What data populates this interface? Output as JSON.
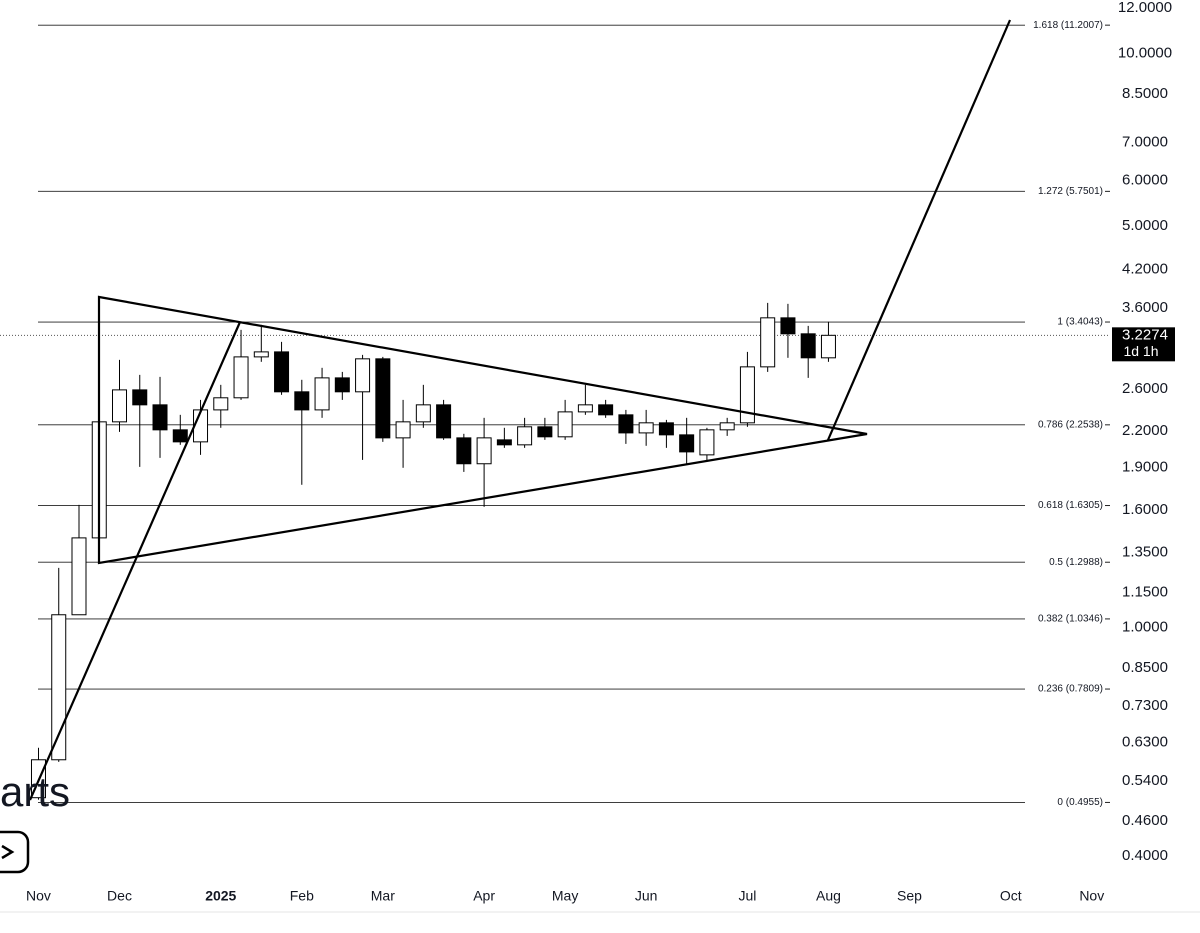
{
  "chart_data": {
    "type": "candlestick",
    "yscale": "log",
    "xlim": [
      -1.9,
      52.9
    ],
    "ylim": [
      0.363,
      12.39
    ],
    "xticks": [
      {
        "value": 0,
        "label": "Nov"
      },
      {
        "value": 4,
        "label": "Dec"
      },
      {
        "value": 9,
        "label": "2025"
      },
      {
        "value": 13,
        "label": "Feb"
      },
      {
        "value": 17,
        "label": "Mar"
      },
      {
        "value": 22,
        "label": "Apr"
      },
      {
        "value": 26,
        "label": "May"
      },
      {
        "value": 30,
        "label": "Jun"
      },
      {
        "value": 35,
        "label": "Jul"
      },
      {
        "value": 39,
        "label": "Aug"
      },
      {
        "value": 43,
        "label": "Sep"
      },
      {
        "value": 48,
        "label": "Oct"
      },
      {
        "value": 52,
        "label": "Nov"
      }
    ],
    "yticks": [
      {
        "value": 12,
        "label": "12.0000"
      },
      {
        "value": 10,
        "label": "10.0000"
      },
      {
        "value": 8.5,
        "label": "8.5000"
      },
      {
        "value": 7,
        "label": "7.0000"
      },
      {
        "value": 6,
        "label": "6.0000"
      },
      {
        "value": 5,
        "label": "5.0000"
      },
      {
        "value": 4.2,
        "label": "4.2000"
      },
      {
        "value": 3.6,
        "label": "3.6000"
      },
      {
        "value": 2.6,
        "label": "2.6000"
      },
      {
        "value": 2.2,
        "label": "2.2000"
      },
      {
        "value": 1.9,
        "label": "1.9000"
      },
      {
        "value": 1.6,
        "label": "1.6000"
      },
      {
        "value": 1.35,
        "label": "1.3500"
      },
      {
        "value": 1.15,
        "label": "1.1500"
      },
      {
        "value": 1,
        "label": "1.0000"
      },
      {
        "value": 0.85,
        "label": "0.8500"
      },
      {
        "value": 0.73,
        "label": "0.7300"
      },
      {
        "value": 0.63,
        "label": "0.6300"
      },
      {
        "value": 0.54,
        "label": "0.5400"
      },
      {
        "value": 0.46,
        "label": "0.4600"
      },
      {
        "value": 0.4,
        "label": "0.4000"
      }
    ],
    "candles": {
      "open": [
        0.505,
        0.588,
        1.052,
        1.432,
        2.281,
        2.593,
        2.442,
        2.209,
        2.105,
        2.393,
        2.512,
        2.96,
        3.02,
        2.573,
        2.393,
        2.721,
        2.573,
        2.937,
        2.139,
        2.281,
        2.442,
        2.139,
        1.928,
        2.122,
        2.08,
        2.236,
        2.148,
        2.374,
        2.442,
        2.346,
        2.182,
        2.272,
        2.165,
        1.998,
        2.209,
        2.272,
        2.844,
        3.462,
        3.247,
        2.949
      ],
      "high": [
        0.617,
        1.27,
        1.635,
        2.299,
        2.925,
        2.754,
        2.732,
        2.346,
        2.491,
        2.646,
        3.299,
        3.366,
        3.144,
        2.7,
        2.833,
        2.787,
        2.984,
        2.96,
        2.491,
        2.646,
        2.491,
        2.174,
        2.318,
        2.227,
        2.318,
        2.318,
        2.491,
        2.646,
        2.491,
        2.393,
        2.393,
        2.299,
        2.318,
        2.227,
        2.318,
        3.02,
        3.676,
        3.662,
        3.352,
        3.407
      ],
      "low": [
        0.501,
        0.583,
        1.052,
        1.421,
        2.191,
        1.904,
        1.974,
        2.08,
        1.998,
        2.227,
        2.491,
        2.902,
        2.542,
        1.772,
        2.318,
        2.491,
        1.958,
        2.105,
        1.897,
        2.227,
        2.122,
        1.866,
        1.622,
        2.055,
        2.055,
        2.122,
        2.122,
        2.346,
        2.318,
        2.088,
        2.072,
        2.055,
        1.92,
        1.943,
        2.156,
        2.236,
        2.787,
        2.949,
        2.721,
        2.902
      ],
      "close": [
        0.588,
        1.052,
        1.432,
        2.281,
        2.593,
        2.442,
        2.209,
        2.105,
        2.393,
        2.512,
        2.96,
        3.02,
        2.573,
        2.393,
        2.721,
        2.573,
        2.937,
        2.139,
        2.281,
        2.442,
        2.139,
        1.928,
        2.139,
        2.08,
        2.236,
        2.148,
        2.374,
        2.442,
        2.346,
        2.182,
        2.272,
        2.165,
        2.022,
        2.209,
        2.272,
        2.844,
        3.462,
        3.247,
        2.949,
        3.2274
      ]
    },
    "up_color": "#ffffff",
    "down_color": "#000000",
    "fib_levels": [
      {
        "value": 11.2007,
        "label": "1.618 (11.2007)"
      },
      {
        "value": 5.7501,
        "label": "1.272 (5.7501)"
      },
      {
        "value": 3.4043,
        "label": "1 (3.4043)"
      },
      {
        "value": 2.2538,
        "label": "0.786 (2.2538)"
      },
      {
        "value": 1.6305,
        "label": "0.618 (1.6305)"
      },
      {
        "value": 1.2988,
        "label": "0.5 (1.2988)"
      },
      {
        "value": 1.0346,
        "label": "0.382 (1.0346)"
      },
      {
        "value": 0.7809,
        "label": "0.236 (0.7809)"
      },
      {
        "value": 0.4955,
        "label": "0 (0.4955)"
      }
    ],
    "current_price": 3.2274,
    "countdown": "1d 1h"
  },
  "watermark": "arts"
}
